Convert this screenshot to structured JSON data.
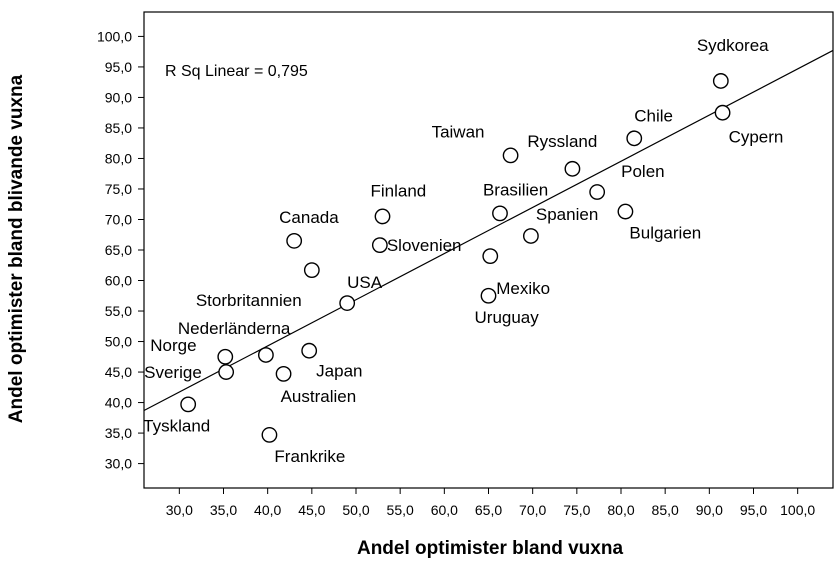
{
  "chart_data": {
    "type": "scatter",
    "xlabel": "Andel optimister bland vuxna",
    "ylabel": "Andel optimister bland blivande vuxna",
    "annotation": "R Sq Linear = 0,795",
    "xlim": [
      26,
      104
    ],
    "ylim": [
      26,
      104
    ],
    "x_ticks": [
      "30,0",
      "35,0",
      "40,0",
      "45,0",
      "50,0",
      "55,0",
      "60,0",
      "65,0",
      "70,0",
      "75,0",
      "80,0",
      "85,0",
      "90,0",
      "95,0",
      "100,0"
    ],
    "y_ticks": [
      "30,0",
      "35,0",
      "40,0",
      "45,0",
      "50,0",
      "55,0",
      "60,0",
      "65,0",
      "70,0",
      "75,0",
      "80,0",
      "85,0",
      "90,0",
      "95,0",
      "100,0"
    ],
    "fit_line": {
      "x": [
        26,
        104
      ],
      "y": [
        38.7,
        97.7
      ]
    },
    "points": [
      {
        "label": "Sydkorea",
        "x": 91.3,
        "y": 92.7
      },
      {
        "label": "Cypern",
        "x": 91.5,
        "y": 87.5
      },
      {
        "label": "Chile",
        "x": 81.5,
        "y": 83.3
      },
      {
        "label": "Ryssland",
        "x": 74.5,
        "y": 78.3
      },
      {
        "label": "Taiwan",
        "x": 67.5,
        "y": 80.5
      },
      {
        "label": "Polen",
        "x": 77.3,
        "y": 74.5
      },
      {
        "label": "Brasilien",
        "x": 66.3,
        "y": 71.0
      },
      {
        "label": "Bulgarien",
        "x": 80.5,
        "y": 71.3
      },
      {
        "label": "Spanien",
        "x": 69.8,
        "y": 67.3
      },
      {
        "label": "Finland",
        "x": 53.0,
        "y": 70.5
      },
      {
        "label": "Slovenien",
        "x": 52.7,
        "y": 65.8
      },
      {
        "label": "Mexiko",
        "x": 65.2,
        "y": 64.0
      },
      {
        "label": "Canada",
        "x": 43.0,
        "y": 66.5
      },
      {
        "label": "Storbritannien",
        "x": 45.0,
        "y": 61.7
      },
      {
        "label": "USA",
        "x": 49.0,
        "y": 56.3
      },
      {
        "label": "Uruguay",
        "x": 65.0,
        "y": 57.5
      },
      {
        "label": "Nederländerna",
        "x": 39.8,
        "y": 47.8
      },
      {
        "label": "Japan",
        "x": 44.7,
        "y": 48.5
      },
      {
        "label": "Norge",
        "x": 35.2,
        "y": 47.5
      },
      {
        "label": "Sverige",
        "x": 35.3,
        "y": 45.0
      },
      {
        "label": "Australien",
        "x": 41.8,
        "y": 44.7
      },
      {
        "label": "Tyskland",
        "x": 31.0,
        "y": 39.7
      },
      {
        "label": "Frankrike",
        "x": 40.2,
        "y": 34.7
      }
    ]
  }
}
